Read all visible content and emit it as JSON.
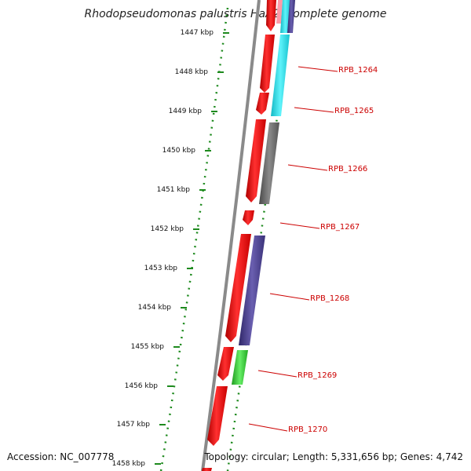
{
  "title": "Rhodopseudomonas palustris HaA2, complete genome",
  "accession": "Accession: NC_007778",
  "topology": "Topology: circular; Length: 5,331,656 bp; Genes: 4,742",
  "colors": {
    "backbone": "#8a8a8a",
    "ruler_dots": "#1e8a1e",
    "cds_forward": "#ee1111",
    "cds_reverse_cyan": "#22e5f0",
    "cds_reverse_purple": "#4a3f8e",
    "cds_reverse_gray": "#6f6f6f",
    "cds_reverse_green": "#33cc33",
    "pink": "#ff9aa8",
    "label": "#cc0000"
  },
  "ruler": {
    "ticks": [
      "1447 kbp",
      "1448 kbp",
      "1449 kbp",
      "1450 kbp",
      "1451 kbp",
      "1452 kbp",
      "1453 kbp",
      "1454 kbp",
      "1455 kbp",
      "1456 kbp",
      "1457 kbp",
      "1458 kbp"
    ]
  },
  "gene_labels": [
    "RPB_1264",
    "RPB_1265",
    "RPB_1266",
    "RPB_1267",
    "RPB_1268",
    "RPB_1269",
    "RPB_1270"
  ]
}
